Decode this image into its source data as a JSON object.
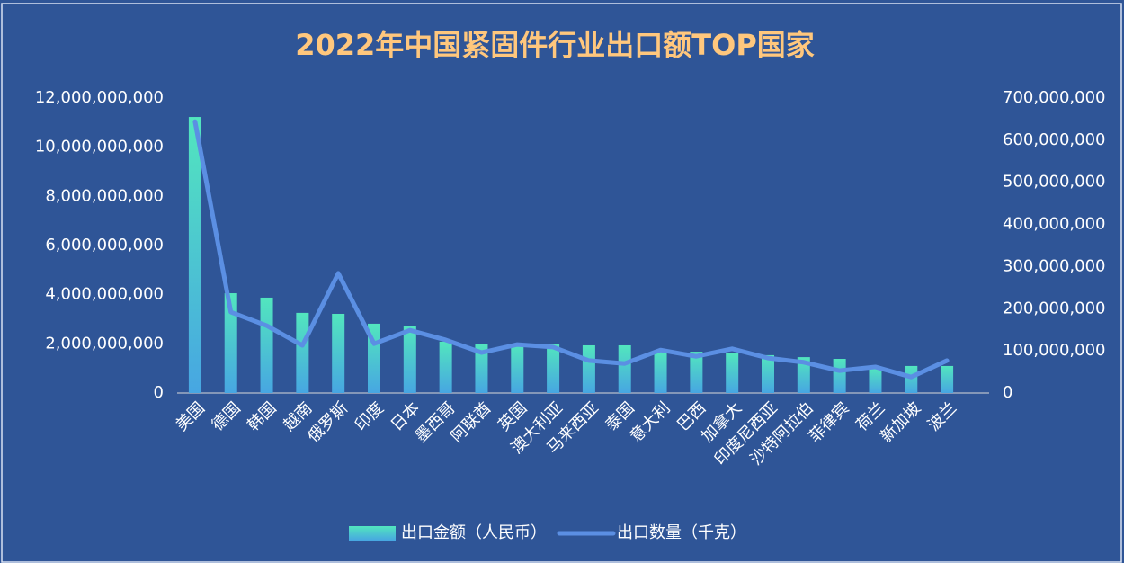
{
  "chart_data": {
    "type": "bar_line",
    "title": "2022年中国紧固件行业出口额TOP国家",
    "categories": [
      "美国",
      "德国",
      "韩国",
      "越南",
      "俄罗斯",
      "印度",
      "日本",
      "墨西哥",
      "阿联酋",
      "英国",
      "澳大利亚",
      "马来西亚",
      "泰国",
      "意大利",
      "巴西",
      "加拿大",
      "印度尼西亚",
      "沙特阿拉伯",
      "菲律宾",
      "荷兰",
      "新加坡",
      "波兰"
    ],
    "series": [
      {
        "name": "出口金额（人民币）",
        "type": "bar",
        "color": "#4fe3c1",
        "values": [
          11230000000,
          4060000000,
          3880000000,
          3260000000,
          3220000000,
          2820000000,
          2710000000,
          2090000000,
          2010000000,
          1980000000,
          1980000000,
          1940000000,
          1940000000,
          1680000000,
          1680000000,
          1610000000,
          1540000000,
          1460000000,
          1390000000,
          1020000000,
          1100000000,
          1100000000
        ]
      },
      {
        "name": "出口数量（千克）",
        "type": "line",
        "axis": "y2",
        "color": "#5b8fe3",
        "values": [
          644000000,
          192000000,
          160000000,
          113000000,
          284000000,
          117000000,
          149000000,
          126000000,
          96000000,
          115000000,
          109000000,
          77000000,
          70000000,
          102000000,
          87000000,
          105000000,
          83000000,
          73000000,
          53000000,
          62000000,
          38000000,
          77000000
        ]
      }
    ],
    "ylim": [
      0,
      12000000000
    ],
    "yticks": [
      0,
      {
        "value": 2000000000,
        "label": "2,000,000,000"
      },
      {
        "value": 4000000000,
        "label": "4,000,000,000"
      },
      {
        "value": 6000000000,
        "label": "6,000,000,000"
      },
      {
        "value": 8000000000,
        "label": "8,000,000,000"
      },
      {
        "value": 10000000000,
        "label": "10,000,000,000"
      },
      {
        "value": 12000000000,
        "label": "12,000,000,000"
      }
    ],
    "y2lim": [
      0,
      700000000
    ],
    "y2ticks": [
      0,
      {
        "value": 100000000,
        "label": "100,000,000"
      },
      {
        "value": 200000000,
        "label": "200,000,000"
      },
      {
        "value": 300000000,
        "label": "300,000,000"
      },
      {
        "value": 400000000,
        "label": "400,000,000"
      },
      {
        "value": 500000000,
        "label": "500,000,000"
      },
      {
        "value": 600000000,
        "label": "600,000,000"
      },
      {
        "value": 700000000,
        "label": "700,000,000"
      }
    ],
    "legend": "bottom"
  }
}
